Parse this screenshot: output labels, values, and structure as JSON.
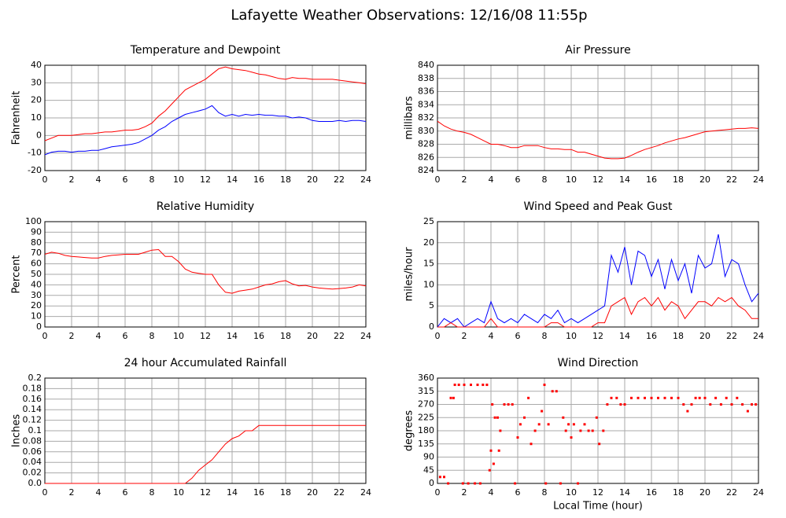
{
  "title": "Lafayette Weather Observations: 12/16/08 11:55p",
  "chart_data": [
    {
      "type": "line",
      "title": "Temperature and Dewpoint",
      "ylabel": "Fahrenheit",
      "x": [
        0,
        0.5,
        1,
        1.5,
        2,
        2.5,
        3,
        3.5,
        4,
        4.5,
        5,
        5.5,
        6,
        6.5,
        7,
        7.5,
        8,
        8.5,
        9,
        9.5,
        10,
        10.5,
        11,
        11.5,
        12,
        12.5,
        13,
        13.5,
        14,
        14.5,
        15,
        15.5,
        16,
        16.5,
        17,
        17.5,
        18,
        18.5,
        19,
        19.5,
        20,
        20.5,
        21,
        21.5,
        22,
        22.5,
        23,
        23.5,
        24
      ],
      "series": [
        {
          "color": "#ff0000",
          "values": [
            -3,
            -1.5,
            0,
            0,
            0,
            0.5,
            1,
            1,
            1.5,
            2,
            2,
            2.5,
            3,
            3,
            3.5,
            5,
            7,
            11,
            14,
            18,
            22,
            26,
            28,
            30,
            32,
            35,
            38,
            39,
            38,
            37.5,
            37,
            36,
            35,
            34.5,
            33.5,
            32.5,
            32,
            33,
            32.5,
            32.5,
            32,
            32,
            32,
            32,
            31.5,
            31,
            30.5,
            30,
            29.5
          ]
        },
        {
          "color": "#0000ff",
          "values": [
            -11,
            -9.5,
            -9,
            -9,
            -9.5,
            -9,
            -9,
            -8.5,
            -8.5,
            -7.5,
            -6.5,
            -6,
            -5.5,
            -5,
            -4,
            -2,
            0,
            3,
            5,
            8,
            10,
            12,
            13,
            14,
            15,
            17,
            13,
            11,
            12,
            11,
            12,
            11.5,
            12,
            11.5,
            11.5,
            11,
            11,
            10,
            10.5,
            10,
            8.5,
            8,
            8,
            8,
            8.5,
            8,
            8.5,
            8.5,
            8
          ]
        }
      ],
      "xlim": [
        0,
        24
      ],
      "xticks": [
        0,
        2,
        4,
        6,
        8,
        10,
        12,
        14,
        16,
        18,
        20,
        22,
        24
      ],
      "ylim": [
        -20,
        40
      ],
      "yticks": [
        -20,
        -10,
        0,
        10,
        20,
        30,
        40
      ],
      "grid": true
    },
    {
      "type": "line",
      "title": "Air Pressure",
      "ylabel": "millibars",
      "x": [
        0,
        0.5,
        1,
        1.5,
        2,
        2.5,
        3,
        3.5,
        4,
        4.5,
        5,
        5.5,
        6,
        6.5,
        7,
        7.5,
        8,
        8.5,
        9,
        9.5,
        10,
        10.5,
        11,
        11.5,
        12,
        12.5,
        13,
        13.5,
        14,
        14.5,
        15,
        15.5,
        16,
        16.5,
        17,
        17.5,
        18,
        18.5,
        19,
        19.5,
        20,
        20.5,
        21,
        21.5,
        22,
        22.5,
        23,
        23.5,
        24
      ],
      "series": [
        {
          "color": "#ff0000",
          "values": [
            831.5,
            830.8,
            830.3,
            830,
            829.8,
            829.5,
            829,
            828.5,
            828,
            828,
            827.8,
            827.5,
            827.5,
            827.8,
            827.8,
            827.8,
            827.5,
            827.3,
            827.3,
            827.2,
            827.2,
            826.8,
            826.8,
            826.5,
            826.2,
            825.9,
            825.8,
            825.8,
            825.9,
            826.3,
            826.8,
            827.2,
            827.5,
            827.8,
            828.2,
            828.5,
            828.8,
            829,
            829.3,
            829.6,
            829.9,
            830,
            830.1,
            830.2,
            830.3,
            830.4,
            830.4,
            830.5,
            830.4
          ]
        }
      ],
      "xlim": [
        0,
        24
      ],
      "xticks": [
        0,
        2,
        4,
        6,
        8,
        10,
        12,
        14,
        16,
        18,
        20,
        22,
        24
      ],
      "ylim": [
        824,
        840
      ],
      "yticks": [
        824,
        826,
        828,
        830,
        832,
        834,
        836,
        838,
        840
      ],
      "grid": true
    },
    {
      "type": "line",
      "title": "Relative Humidity",
      "ylabel": "Percent",
      "x": [
        0,
        0.5,
        1,
        1.5,
        2,
        2.5,
        3,
        3.5,
        4,
        4.5,
        5,
        5.5,
        6,
        6.5,
        7,
        7.5,
        8,
        8.5,
        9,
        9.5,
        10,
        10.5,
        11,
        11.5,
        12,
        12.5,
        13,
        13.5,
        14,
        14.5,
        15,
        15.5,
        16,
        16.5,
        17,
        17.5,
        18,
        18.5,
        19,
        19.5,
        20,
        20.5,
        21,
        21.5,
        22,
        22.5,
        23,
        23.5,
        24
      ],
      "series": [
        {
          "color": "#ff0000",
          "values": [
            69,
            71,
            70,
            68,
            67,
            66.5,
            66,
            65.5,
            65.5,
            67,
            68,
            68.5,
            69,
            69,
            69,
            71,
            73,
            73.5,
            67,
            67,
            62,
            55,
            52,
            51,
            50,
            50,
            40,
            33,
            32,
            34,
            35,
            36,
            38,
            40,
            41,
            43,
            44,
            41,
            39,
            39.5,
            38,
            37,
            36.5,
            36,
            36.5,
            37,
            38,
            40,
            39
          ]
        }
      ],
      "xlim": [
        0,
        24
      ],
      "xticks": [
        0,
        2,
        4,
        6,
        8,
        10,
        12,
        14,
        16,
        18,
        20,
        22,
        24
      ],
      "ylim": [
        0,
        100
      ],
      "yticks": [
        0,
        10,
        20,
        30,
        40,
        50,
        60,
        70,
        80,
        90,
        100
      ],
      "grid": true
    },
    {
      "type": "line",
      "title": "Wind Speed and Peak Gust",
      "ylabel": "miles/hour",
      "x": [
        0,
        0.5,
        1,
        1.5,
        2,
        2.5,
        3,
        3.5,
        4,
        4.5,
        5,
        5.5,
        6,
        6.5,
        7,
        7.5,
        8,
        8.5,
        9,
        9.5,
        10,
        10.5,
        11,
        11.5,
        12,
        12.5,
        13,
        13.5,
        14,
        14.5,
        15,
        15.5,
        16,
        16.5,
        17,
        17.5,
        18,
        18.5,
        19,
        19.5,
        20,
        20.5,
        21,
        21.5,
        22,
        22.5,
        23,
        23.5,
        24
      ],
      "series": [
        {
          "color": "#0000ff",
          "values": [
            0,
            2,
            1,
            2,
            0,
            1,
            2,
            1,
            6,
            2,
            1,
            2,
            1,
            3,
            2,
            1,
            3,
            2,
            4,
            1,
            2,
            1,
            2,
            3,
            4,
            5,
            17,
            13,
            19,
            10,
            18,
            17,
            12,
            16,
            9,
            16,
            11,
            15,
            8,
            17,
            14,
            15,
            22,
            12,
            16,
            15,
            10,
            6,
            8
          ]
        },
        {
          "color": "#ff0000",
          "values": [
            0,
            0,
            1,
            0,
            0,
            0,
            0,
            0,
            2,
            0,
            0,
            0,
            0,
            0,
            0,
            0,
            0,
            1,
            1,
            0,
            0,
            0,
            0,
            0,
            1,
            1,
            5,
            6,
            7,
            3,
            6,
            7,
            5,
            7,
            4,
            6,
            5,
            2,
            4,
            6,
            6,
            5,
            7,
            6,
            7,
            5,
            4,
            2,
            2
          ]
        }
      ],
      "xlim": [
        0,
        24
      ],
      "xticks": [
        0,
        2,
        4,
        6,
        8,
        10,
        12,
        14,
        16,
        18,
        20,
        22,
        24
      ],
      "ylim": [
        0,
        25
      ],
      "yticks": [
        0,
        5,
        10,
        15,
        20,
        25
      ],
      "grid": true
    },
    {
      "type": "line",
      "title": "24 hour Accumulated Rainfall",
      "ylabel": "Inches",
      "x": [
        0,
        10.5,
        11,
        11.5,
        12,
        12.5,
        13,
        13.5,
        14,
        14.5,
        15,
        15.5,
        16,
        24
      ],
      "series": [
        {
          "color": "#ff0000",
          "values": [
            0,
            0,
            0.01,
            0.025,
            0.035,
            0.045,
            0.06,
            0.075,
            0.085,
            0.09,
            0.1,
            0.1,
            0.11,
            0.11
          ]
        }
      ],
      "xlim": [
        0,
        24
      ],
      "xticks": [
        0,
        2,
        4,
        6,
        8,
        10,
        12,
        14,
        16,
        18,
        20,
        22,
        24
      ],
      "ylim": [
        0,
        0.2
      ],
      "yticks": [
        {
          "value": 0,
          "label": "0.0"
        },
        0.02,
        0.04,
        0.06,
        0.08,
        0.1,
        0.12,
        0.14,
        0.16,
        0.18,
        0.2
      ],
      "grid": true
    },
    {
      "type": "scatter",
      "title": "Wind Direction",
      "ylabel": "degrees",
      "xlabel": "Local Time (hour)",
      "x": [
        0.2,
        0.5,
        0.8,
        1,
        1.2,
        1.3,
        1.6,
        1.9,
        2,
        2.3,
        2.5,
        2.8,
        3,
        3.2,
        3.4,
        3.7,
        3.9,
        4,
        4.1,
        4.2,
        4.3,
        4.5,
        4.6,
        4.7,
        5,
        5.3,
        5.6,
        5.8,
        6,
        6.2,
        6.5,
        6.8,
        7,
        7.3,
        7.6,
        7.8,
        8,
        8.1,
        8.3,
        8.6,
        8.9,
        9.2,
        9.4,
        9.6,
        9.8,
        10,
        10.2,
        10.5,
        10.7,
        11,
        11.3,
        11.6,
        11.9,
        12.1,
        12.4,
        12.7,
        13,
        13.4,
        13.7,
        14,
        14.5,
        15,
        15.5,
        16,
        16.5,
        17,
        17.5,
        18,
        18.4,
        18.7,
        19,
        19.3,
        19.6,
        20,
        20.4,
        20.8,
        21.2,
        21.6,
        22,
        22.4,
        22.8,
        23.2,
        23.5,
        23.8
      ],
      "series": [
        {
          "color": "#ff0000",
          "values": [
            22,
            22,
            0,
            292,
            292,
            337,
            337,
            0,
            337,
            0,
            337,
            0,
            337,
            0,
            337,
            337,
            45,
            112,
            270,
            67,
            225,
            225,
            112,
            180,
            270,
            270,
            270,
            0,
            157,
            202,
            225,
            292,
            135,
            180,
            202,
            247,
            337,
            0,
            202,
            315,
            315,
            0,
            225,
            180,
            202,
            157,
            202,
            0,
            180,
            202,
            180,
            180,
            225,
            135,
            180,
            270,
            292,
            292,
            270,
            270,
            292,
            292,
            292,
            292,
            292,
            292,
            292,
            292,
            270,
            247,
            270,
            292,
            292,
            292,
            270,
            292,
            270,
            292,
            270,
            292,
            270,
            247,
            270,
            270
          ]
        }
      ],
      "xlim": [
        0,
        24
      ],
      "xticks": [
        0,
        2,
        4,
        6,
        8,
        10,
        12,
        14,
        16,
        18,
        20,
        22,
        24
      ],
      "ylim": [
        0,
        360
      ],
      "yticks": [
        0,
        45,
        90,
        135,
        180,
        225,
        270,
        315,
        360
      ],
      "grid": true
    }
  ]
}
